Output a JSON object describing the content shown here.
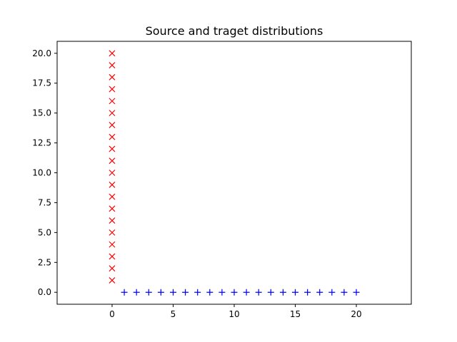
{
  "chart_data": {
    "type": "scatter",
    "title": "Source and traget distributions",
    "xlabel": "",
    "ylabel": "",
    "xlim": [
      -4.5,
      24.5
    ],
    "ylim": [
      -1,
      21
    ],
    "grid": false,
    "xticks": [
      0,
      5,
      10,
      15,
      20
    ],
    "xtick_labels": [
      "0",
      "5",
      "10",
      "15",
      "20"
    ],
    "yticks": [
      0,
      2.5,
      5,
      7.5,
      10,
      12.5,
      15,
      17.5,
      20
    ],
    "ytick_labels": [
      "0.0",
      "2.5",
      "5.0",
      "7.5",
      "10.0",
      "12.5",
      "15.0",
      "17.5",
      "20.0"
    ],
    "series": [
      {
        "marker": "x",
        "color": "#ff0000",
        "points": [
          [
            0,
            1
          ],
          [
            0,
            2
          ],
          [
            0,
            3
          ],
          [
            0,
            4
          ],
          [
            0,
            5
          ],
          [
            0,
            6
          ],
          [
            0,
            7
          ],
          [
            0,
            8
          ],
          [
            0,
            9
          ],
          [
            0,
            10
          ],
          [
            0,
            11
          ],
          [
            0,
            12
          ],
          [
            0,
            13
          ],
          [
            0,
            14
          ],
          [
            0,
            15
          ],
          [
            0,
            16
          ],
          [
            0,
            17
          ],
          [
            0,
            18
          ],
          [
            0,
            19
          ],
          [
            0,
            20
          ]
        ]
      },
      {
        "marker": "+",
        "color": "#0000ff",
        "points": [
          [
            1,
            0
          ],
          [
            2,
            0
          ],
          [
            3,
            0
          ],
          [
            4,
            0
          ],
          [
            5,
            0
          ],
          [
            6,
            0
          ],
          [
            7,
            0
          ],
          [
            8,
            0
          ],
          [
            9,
            0
          ],
          [
            10,
            0
          ],
          [
            11,
            0
          ],
          [
            12,
            0
          ],
          [
            13,
            0
          ],
          [
            14,
            0
          ],
          [
            15,
            0
          ],
          [
            16,
            0
          ],
          [
            17,
            0
          ],
          [
            18,
            0
          ],
          [
            19,
            0
          ],
          [
            20,
            0
          ]
        ]
      }
    ]
  }
}
